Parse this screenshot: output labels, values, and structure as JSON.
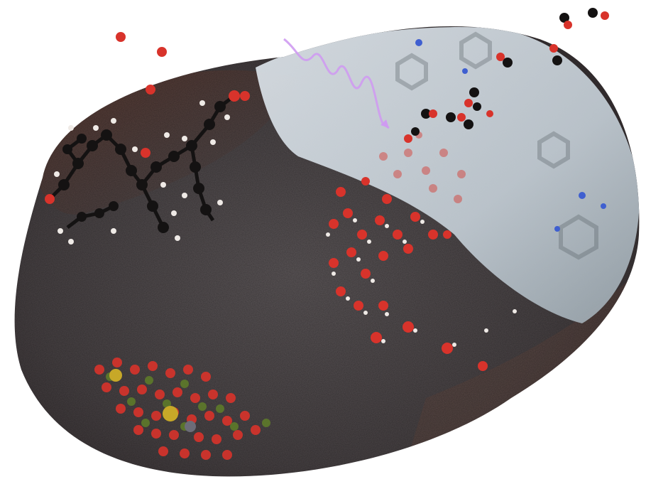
{
  "scene": {
    "kind": "illustration",
    "colors": {
      "background": "#ffffff",
      "rock_dark": "#4a4446",
      "rock_mid": "#605a5c",
      "rock_brown": "#6e4a3e",
      "ice": "#c4ced6",
      "ice_light": "#dfe6ec",
      "carbon_atom": "#141212",
      "oxygen_atom": "#d8332b",
      "hydrogen_atom": "#efeae6",
      "nitrogen_atom": "#3f5fd0",
      "mineral_green": "#5e7a2a",
      "mineral_gold": "#c7a828",
      "photon_wave": "#cf9bf1"
    },
    "icons": [
      "molecule-chain",
      "water-molecule",
      "co2-molecule",
      "mineral-lattice",
      "photon-wave",
      "ice-patch"
    ]
  }
}
